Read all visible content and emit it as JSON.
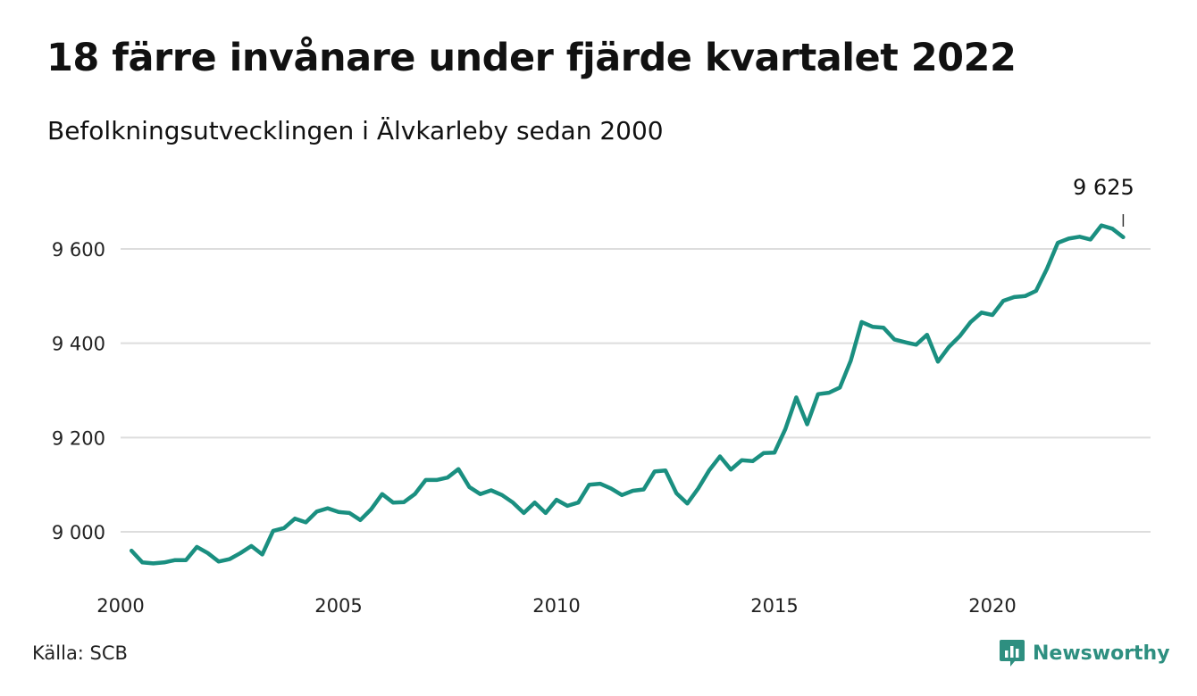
{
  "header": {
    "title": "18 färre invånare under fjärde kvartalet 2022",
    "subtitle": "Befolkningsutvecklingen i Älvkarleby sedan 2000"
  },
  "footer": {
    "source": "Källa: SCB",
    "brand": "Newsworthy"
  },
  "colors": {
    "line": "#1a8f80",
    "grid": "#dddddd",
    "brand": "#2e8f80"
  },
  "chart_data": {
    "type": "line",
    "title": "18 färre invånare under fjärde kvartalet 2022",
    "subtitle": "Befolkningsutvecklingen i Älvkarleby sedan 2000",
    "xlabel": "",
    "ylabel": "",
    "xlim": [
      2000,
      2023.5
    ],
    "ylim": [
      8900,
      9700
    ],
    "grid": true,
    "legend": "none",
    "y_ticks": [
      {
        "value": 9000,
        "label": "9 000"
      },
      {
        "value": 9200,
        "label": "9 200"
      },
      {
        "value": 9400,
        "label": "9 400"
      },
      {
        "value": 9600,
        "label": "9 600"
      }
    ],
    "x_ticks": [
      {
        "value": 2000,
        "label": "2000"
      },
      {
        "value": 2005,
        "label": "2005"
      },
      {
        "value": 2010,
        "label": "2010"
      },
      {
        "value": 2015,
        "label": "2015"
      },
      {
        "value": 2020,
        "label": "2020"
      }
    ],
    "annotation": {
      "label": "9 625",
      "x": 2023.0,
      "y": 9625
    },
    "series": [
      {
        "x": [
          2000.25,
          2000.5,
          2000.75,
          2001.0,
          2001.25,
          2001.5,
          2001.75,
          2002.0,
          2002.25,
          2002.5,
          2002.75,
          2003.0,
          2003.25,
          2003.5,
          2003.75,
          2004.0,
          2004.25,
          2004.5,
          2004.75,
          2005.0,
          2005.25,
          2005.5,
          2005.75,
          2006.0,
          2006.25,
          2006.5,
          2006.75,
          2007.0,
          2007.25,
          2007.5,
          2007.75,
          2008.0,
          2008.25,
          2008.5,
          2008.75,
          2009.0,
          2009.25,
          2009.5,
          2009.75,
          2010.0,
          2010.25,
          2010.5,
          2010.75,
          2011.0,
          2011.25,
          2011.5,
          2011.75,
          2012.0,
          2012.25,
          2012.5,
          2012.75,
          2013.0,
          2013.25,
          2013.5,
          2013.75,
          2014.0,
          2014.25,
          2014.5,
          2014.75,
          2015.0,
          2015.25,
          2015.5,
          2015.75,
          2016.0,
          2016.25,
          2016.5,
          2016.75,
          2017.0,
          2017.25,
          2017.5,
          2017.75,
          2018.0,
          2018.25,
          2018.5,
          2018.75,
          2019.0,
          2019.25,
          2019.5,
          2019.75,
          2020.0,
          2020.25,
          2020.5,
          2020.75,
          2021.0,
          2021.25,
          2021.5,
          2021.75,
          2022.0,
          2022.25,
          2022.5,
          2022.75,
          2023.0
        ],
        "values": [
          8960,
          8935,
          8933,
          8935,
          8940,
          8940,
          8968,
          8955,
          8937,
          8942,
          8955,
          8970,
          8952,
          9002,
          9008,
          9028,
          9020,
          9043,
          9050,
          9042,
          9040,
          9025,
          9048,
          9080,
          9062,
          9063,
          9080,
          9110,
          9110,
          9115,
          9133,
          9095,
          9080,
          9088,
          9078,
          9062,
          9040,
          9062,
          9040,
          9068,
          9055,
          9062,
          9100,
          9102,
          9092,
          9078,
          9087,
          9090,
          9128,
          9130,
          9082,
          9060,
          9092,
          9130,
          9160,
          9132,
          9152,
          9150,
          9167,
          9168,
          9218,
          9285,
          9228,
          9292,
          9295,
          9306,
          9363,
          9445,
          9435,
          9433,
          9408,
          9402,
          9397,
          9418,
          9361,
          9392,
          9415,
          9445,
          9465,
          9460,
          9490,
          9498,
          9500,
          9511,
          9558,
          9613,
          9622,
          9626,
          9620,
          9650,
          9643,
          9625
        ]
      }
    ]
  }
}
